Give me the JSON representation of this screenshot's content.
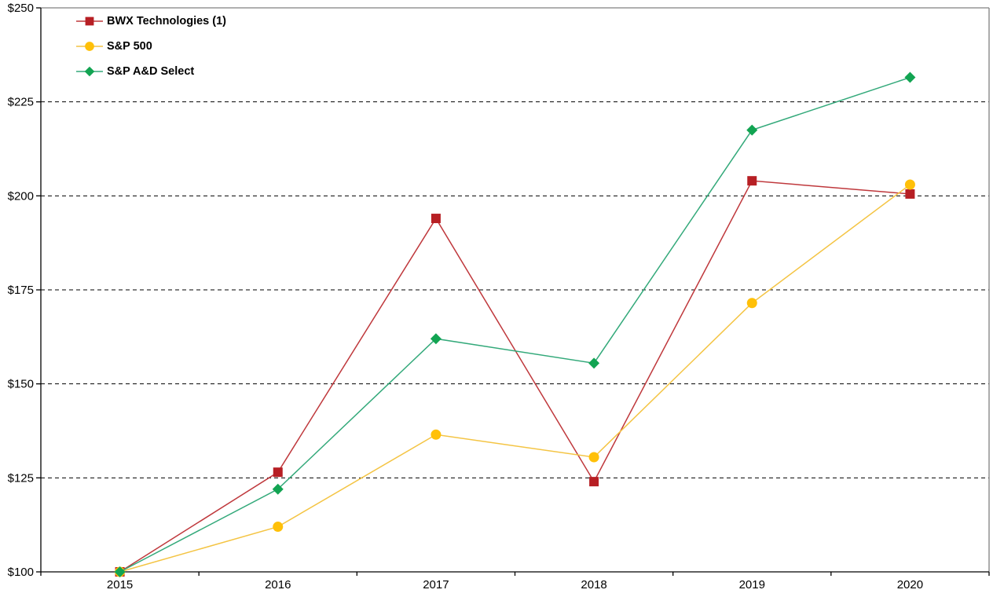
{
  "chart_data": {
    "type": "line",
    "title": "",
    "categories": [
      "2015",
      "2016",
      "2017",
      "2018",
      "2019",
      "2020"
    ],
    "x": [
      2015,
      2016,
      2017,
      2018,
      2019,
      2020
    ],
    "series": [
      {
        "name": "BWX Technologies (1)",
        "marker": "square",
        "marker_color": "#b71f24",
        "line_color": "#bf383c",
        "values": [
          100,
          126.5,
          194,
          124,
          204,
          200.5
        ]
      },
      {
        "name": "S&P 500",
        "marker": "circle",
        "marker_color": "#ffc008",
        "line_color": "#f4c443",
        "values": [
          100,
          112,
          136.5,
          130.5,
          171.5,
          203
        ]
      },
      {
        "name": "S&P A&D Select",
        "marker": "diamond",
        "marker_color": "#12a452",
        "line_color": "#33a97a",
        "values": [
          100,
          122,
          162,
          155.5,
          217.5,
          231.5
        ]
      }
    ],
    "y_axis": {
      "min": 100,
      "max": 250,
      "step": 25,
      "prefix": "$",
      "tick_labels": [
        "$100",
        "$125",
        "$150",
        "$175",
        "$200",
        "$225",
        "$250"
      ]
    },
    "x_axis": {
      "tick_labels": [
        "2015",
        "2016",
        "2017",
        "2018",
        "2019",
        "2020"
      ]
    },
    "grid": {
      "horizontal": true,
      "style": "dashed",
      "color": "#000000"
    },
    "legend_position": "inside-top-left",
    "colors": {
      "plot_border": "#808080",
      "axis_line": "#000000",
      "tick_label": "#000000",
      "background": "#ffffff"
    },
    "ylim": [
      100,
      250
    ]
  }
}
